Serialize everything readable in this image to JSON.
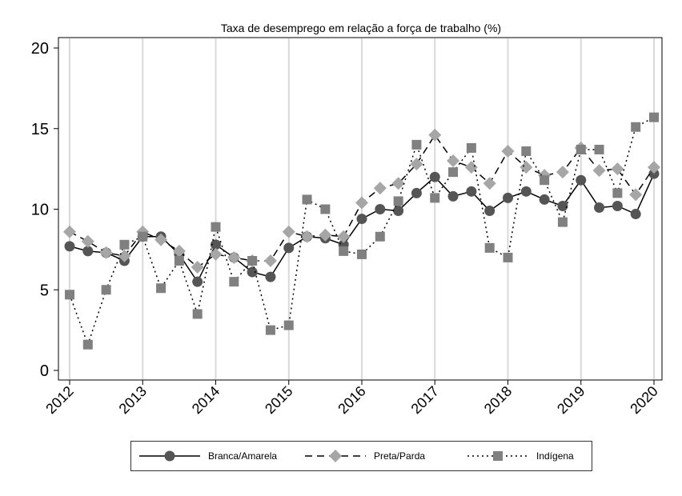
{
  "chart_data": {
    "type": "line",
    "title": "Taxa de desemprego em relação a força de trabalho (%)",
    "xlabel": "",
    "ylabel": "",
    "xlim": [
      2012,
      2020
    ],
    "ylim": [
      0,
      20
    ],
    "yticks": [
      0,
      5,
      10,
      15,
      20
    ],
    "xticks": [
      "2012",
      "2013",
      "2014",
      "2015",
      "2016",
      "2017",
      "2018",
      "2019",
      "2020"
    ],
    "grid": "vertical",
    "legend_position": "bottom",
    "x": [
      2012.0,
      2012.25,
      2012.5,
      2012.75,
      2013.0,
      2013.25,
      2013.5,
      2013.75,
      2014.0,
      2014.25,
      2014.5,
      2014.75,
      2015.0,
      2015.25,
      2015.5,
      2015.75,
      2016.0,
      2016.25,
      2016.5,
      2016.75,
      2017.0,
      2017.25,
      2017.5,
      2017.75,
      2018.0,
      2018.25,
      2018.5,
      2018.75,
      2019.0,
      2019.25,
      2019.5,
      2019.75,
      2020.0
    ],
    "series": [
      {
        "name": "Branca/Amarela",
        "line": "solid",
        "marker": "circle",
        "color": "#555555",
        "values": [
          7.7,
          7.4,
          7.3,
          6.8,
          8.3,
          8.3,
          7.2,
          5.5,
          7.8,
          7.0,
          6.1,
          5.8,
          7.6,
          8.3,
          8.2,
          7.8,
          9.4,
          10.0,
          9.9,
          11.0,
          12.0,
          10.8,
          11.1,
          9.9,
          10.7,
          11.1,
          10.6,
          10.2,
          11.8,
          10.1,
          10.2,
          9.7,
          12.2
        ]
      },
      {
        "name": "Preta/Parda",
        "line": "dashed",
        "marker": "diamond",
        "color": "#a6a6a6",
        "values": [
          8.6,
          8.0,
          7.3,
          7.1,
          8.6,
          8.1,
          7.4,
          6.4,
          7.2,
          7.0,
          6.8,
          6.8,
          8.6,
          8.3,
          8.4,
          8.3,
          10.4,
          11.3,
          11.6,
          12.8,
          14.6,
          13.0,
          12.6,
          11.6,
          13.6,
          12.6,
          12.1,
          12.3,
          13.8,
          12.4,
          12.5,
          10.9,
          12.6
        ]
      },
      {
        "name": "Indígena",
        "line": "dotted",
        "marker": "square",
        "color": "#808080",
        "values": [
          4.7,
          1.6,
          5.0,
          7.8,
          8.3,
          5.1,
          6.8,
          3.5,
          8.9,
          5.5,
          6.8,
          2.5,
          2.8,
          10.6,
          10.0,
          7.4,
          7.2,
          8.3,
          10.5,
          14.0,
          10.7,
          12.3,
          13.8,
          7.6,
          7.0,
          13.6,
          11.8,
          9.2,
          13.7,
          13.7,
          11.0,
          15.1,
          15.7
        ]
      }
    ]
  }
}
